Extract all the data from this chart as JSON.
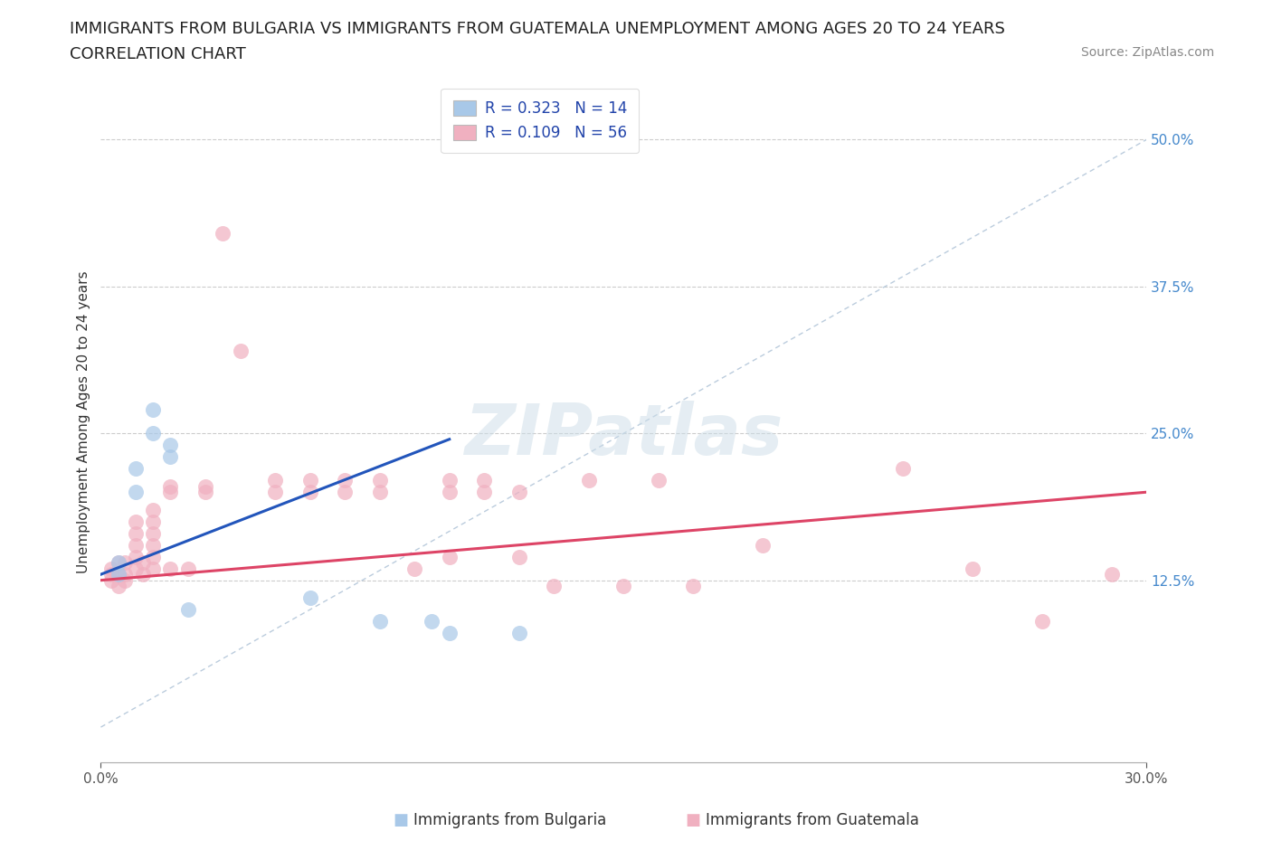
{
  "title_line1": "IMMIGRANTS FROM BULGARIA VS IMMIGRANTS FROM GUATEMALA UNEMPLOYMENT AMONG AGES 20 TO 24 YEARS",
  "title_line2": "CORRELATION CHART",
  "source": "Source: ZipAtlas.com",
  "ylabel": "Unemployment Among Ages 20 to 24 years",
  "xlim": [
    0.0,
    0.3
  ],
  "ylim": [
    -0.03,
    0.55
  ],
  "y_ticks": [
    0.125,
    0.25,
    0.375,
    0.5
  ],
  "x_ticks": [
    0.0,
    0.3
  ],
  "legend_R": [
    0.323,
    0.109
  ],
  "legend_N": [
    14,
    56
  ],
  "blue_color": "#a8c8e8",
  "pink_color": "#f0b0c0",
  "blue_line_color": "#2255bb",
  "pink_line_color": "#dd4466",
  "ref_line_color": "#bbccdd",
  "blue_scatter": [
    [
      0.005,
      0.13
    ],
    [
      0.005,
      0.14
    ],
    [
      0.01,
      0.2
    ],
    [
      0.01,
      0.22
    ],
    [
      0.015,
      0.27
    ],
    [
      0.015,
      0.25
    ],
    [
      0.02,
      0.23
    ],
    [
      0.02,
      0.24
    ],
    [
      0.025,
      0.1
    ],
    [
      0.06,
      0.11
    ],
    [
      0.08,
      0.09
    ],
    [
      0.095,
      0.09
    ],
    [
      0.1,
      0.08
    ],
    [
      0.12,
      0.08
    ]
  ],
  "pink_scatter": [
    [
      0.003,
      0.13
    ],
    [
      0.003,
      0.135
    ],
    [
      0.003,
      0.125
    ],
    [
      0.005,
      0.12
    ],
    [
      0.005,
      0.13
    ],
    [
      0.005,
      0.14
    ],
    [
      0.007,
      0.13
    ],
    [
      0.007,
      0.14
    ],
    [
      0.007,
      0.125
    ],
    [
      0.01,
      0.135
    ],
    [
      0.01,
      0.145
    ],
    [
      0.01,
      0.155
    ],
    [
      0.01,
      0.165
    ],
    [
      0.01,
      0.175
    ],
    [
      0.012,
      0.13
    ],
    [
      0.012,
      0.14
    ],
    [
      0.015,
      0.135
    ],
    [
      0.015,
      0.145
    ],
    [
      0.015,
      0.155
    ],
    [
      0.015,
      0.165
    ],
    [
      0.015,
      0.175
    ],
    [
      0.015,
      0.185
    ],
    [
      0.02,
      0.135
    ],
    [
      0.02,
      0.2
    ],
    [
      0.02,
      0.205
    ],
    [
      0.025,
      0.135
    ],
    [
      0.03,
      0.2
    ],
    [
      0.03,
      0.205
    ],
    [
      0.035,
      0.42
    ],
    [
      0.04,
      0.32
    ],
    [
      0.05,
      0.2
    ],
    [
      0.05,
      0.21
    ],
    [
      0.06,
      0.2
    ],
    [
      0.06,
      0.21
    ],
    [
      0.07,
      0.2
    ],
    [
      0.07,
      0.21
    ],
    [
      0.08,
      0.2
    ],
    [
      0.08,
      0.21
    ],
    [
      0.09,
      0.135
    ],
    [
      0.1,
      0.145
    ],
    [
      0.1,
      0.2
    ],
    [
      0.1,
      0.21
    ],
    [
      0.11,
      0.2
    ],
    [
      0.11,
      0.21
    ],
    [
      0.12,
      0.145
    ],
    [
      0.12,
      0.2
    ],
    [
      0.13,
      0.12
    ],
    [
      0.14,
      0.21
    ],
    [
      0.15,
      0.12
    ],
    [
      0.16,
      0.21
    ],
    [
      0.17,
      0.12
    ],
    [
      0.19,
      0.155
    ],
    [
      0.23,
      0.22
    ],
    [
      0.25,
      0.135
    ],
    [
      0.27,
      0.09
    ],
    [
      0.29,
      0.13
    ]
  ],
  "blue_line_x": [
    0.0,
    0.1
  ],
  "pink_line_x": [
    0.0,
    0.3
  ],
  "blue_line_y": [
    0.13,
    0.245
  ],
  "pink_line_y": [
    0.125,
    0.2
  ],
  "watermark_text": "ZIPatlas",
  "grid_color": "#cccccc",
  "background_color": "#ffffff",
  "title_fontsize": 13,
  "axis_label_fontsize": 11,
  "tick_fontsize": 11,
  "legend_fontsize": 12,
  "source_fontsize": 10,
  "bottom_legend": [
    "Immigrants from Bulgaria",
    "Immigrants from Guatemala"
  ]
}
